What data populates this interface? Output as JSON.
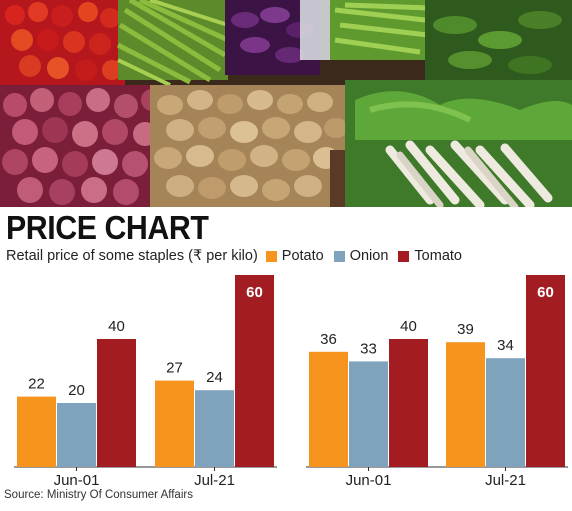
{
  "header": {
    "title": "PRICE CHART",
    "subtitle": "Retail price of some staples (₹ per kilo)"
  },
  "source": "Source: Ministry Of Consumer Affairs",
  "chart_data": [
    {
      "type": "bar",
      "categories": [
        "Jun-01",
        "Jul-21"
      ],
      "series": [
        {
          "name": "Potato",
          "values": [
            22,
            27
          ]
        },
        {
          "name": "Onion",
          "values": [
            20,
            24
          ]
        },
        {
          "name": "Tomato",
          "values": [
            40,
            60
          ]
        }
      ],
      "ylim": [
        0,
        60
      ],
      "grid": false,
      "legend": "top"
    },
    {
      "type": "bar",
      "categories": [
        "Jun-01",
        "Jul-21"
      ],
      "series": [
        {
          "name": "Potato",
          "values": [
            36,
            39
          ]
        },
        {
          "name": "Onion",
          "values": [
            33,
            34
          ]
        },
        {
          "name": "Tomato",
          "values": [
            40,
            60
          ]
        }
      ],
      "ylim": [
        0,
        60
      ],
      "grid": false,
      "legend": "top"
    }
  ],
  "colors": {
    "Potato": "#f7941d",
    "Onion": "#7fa3bd",
    "Tomato": "#a31c21",
    "label_dark": "#222222",
    "label_light": "#ffffff"
  }
}
